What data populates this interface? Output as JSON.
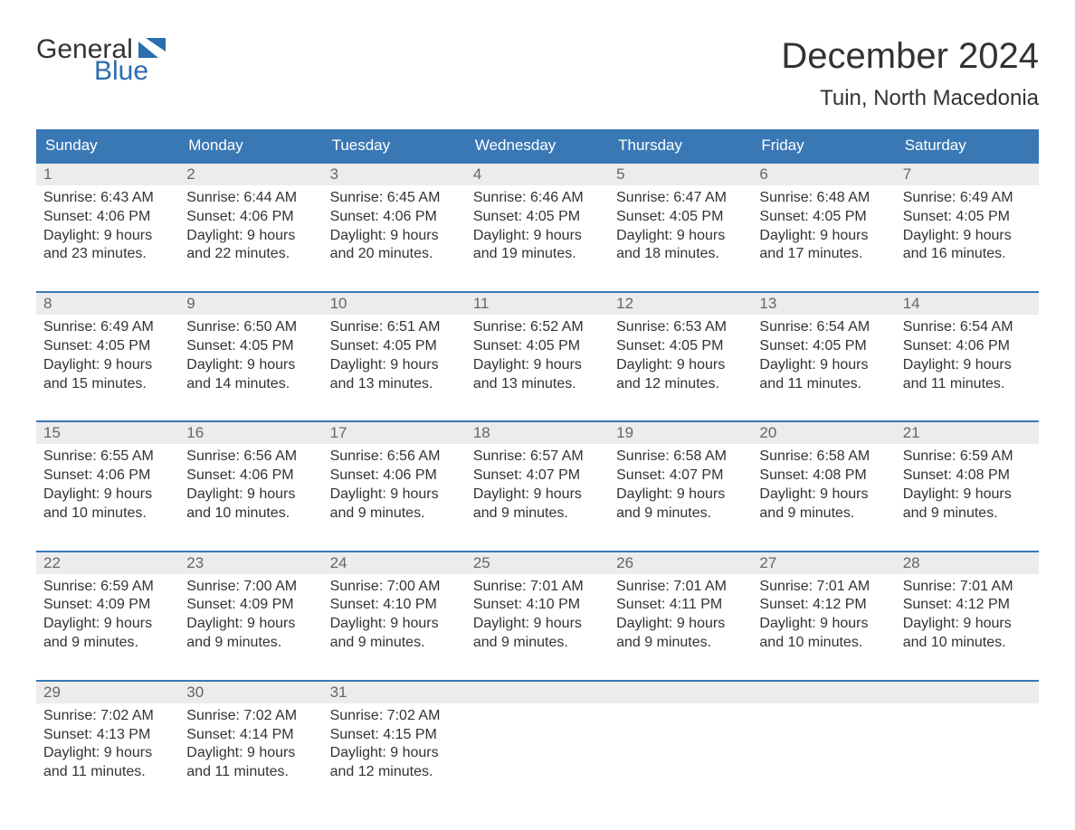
{
  "brand": {
    "word1": "General",
    "word2": "Blue",
    "text_color": "#333333",
    "accent_color": "#2a6db0"
  },
  "header": {
    "month_title": "December 2024",
    "location": "Tuin, North Macedonia"
  },
  "colors": {
    "header_row_bg": "#3a78b5",
    "header_row_text": "#ffffff",
    "daynum_bg": "#ececec",
    "daynum_border": "#3a78b5",
    "daynum_text": "#666666",
    "body_text": "#333333",
    "page_bg": "#ffffff"
  },
  "typography": {
    "month_title_fontsize": 40,
    "location_fontsize": 24,
    "day_header_fontsize": 17,
    "daynum_fontsize": 17,
    "body_fontsize": 16,
    "logo_fontsize": 30
  },
  "day_headers": [
    "Sunday",
    "Monday",
    "Tuesday",
    "Wednesday",
    "Thursday",
    "Friday",
    "Saturday"
  ],
  "weeks": [
    [
      {
        "num": "1",
        "sunrise": "Sunrise: 6:43 AM",
        "sunset": "Sunset: 4:06 PM",
        "daylight1": "Daylight: 9 hours",
        "daylight2": "and 23 minutes."
      },
      {
        "num": "2",
        "sunrise": "Sunrise: 6:44 AM",
        "sunset": "Sunset: 4:06 PM",
        "daylight1": "Daylight: 9 hours",
        "daylight2": "and 22 minutes."
      },
      {
        "num": "3",
        "sunrise": "Sunrise: 6:45 AM",
        "sunset": "Sunset: 4:06 PM",
        "daylight1": "Daylight: 9 hours",
        "daylight2": "and 20 minutes."
      },
      {
        "num": "4",
        "sunrise": "Sunrise: 6:46 AM",
        "sunset": "Sunset: 4:05 PM",
        "daylight1": "Daylight: 9 hours",
        "daylight2": "and 19 minutes."
      },
      {
        "num": "5",
        "sunrise": "Sunrise: 6:47 AM",
        "sunset": "Sunset: 4:05 PM",
        "daylight1": "Daylight: 9 hours",
        "daylight2": "and 18 minutes."
      },
      {
        "num": "6",
        "sunrise": "Sunrise: 6:48 AM",
        "sunset": "Sunset: 4:05 PM",
        "daylight1": "Daylight: 9 hours",
        "daylight2": "and 17 minutes."
      },
      {
        "num": "7",
        "sunrise": "Sunrise: 6:49 AM",
        "sunset": "Sunset: 4:05 PM",
        "daylight1": "Daylight: 9 hours",
        "daylight2": "and 16 minutes."
      }
    ],
    [
      {
        "num": "8",
        "sunrise": "Sunrise: 6:49 AM",
        "sunset": "Sunset: 4:05 PM",
        "daylight1": "Daylight: 9 hours",
        "daylight2": "and 15 minutes."
      },
      {
        "num": "9",
        "sunrise": "Sunrise: 6:50 AM",
        "sunset": "Sunset: 4:05 PM",
        "daylight1": "Daylight: 9 hours",
        "daylight2": "and 14 minutes."
      },
      {
        "num": "10",
        "sunrise": "Sunrise: 6:51 AM",
        "sunset": "Sunset: 4:05 PM",
        "daylight1": "Daylight: 9 hours",
        "daylight2": "and 13 minutes."
      },
      {
        "num": "11",
        "sunrise": "Sunrise: 6:52 AM",
        "sunset": "Sunset: 4:05 PM",
        "daylight1": "Daylight: 9 hours",
        "daylight2": "and 13 minutes."
      },
      {
        "num": "12",
        "sunrise": "Sunrise: 6:53 AM",
        "sunset": "Sunset: 4:05 PM",
        "daylight1": "Daylight: 9 hours",
        "daylight2": "and 12 minutes."
      },
      {
        "num": "13",
        "sunrise": "Sunrise: 6:54 AM",
        "sunset": "Sunset: 4:05 PM",
        "daylight1": "Daylight: 9 hours",
        "daylight2": "and 11 minutes."
      },
      {
        "num": "14",
        "sunrise": "Sunrise: 6:54 AM",
        "sunset": "Sunset: 4:06 PM",
        "daylight1": "Daylight: 9 hours",
        "daylight2": "and 11 minutes."
      }
    ],
    [
      {
        "num": "15",
        "sunrise": "Sunrise: 6:55 AM",
        "sunset": "Sunset: 4:06 PM",
        "daylight1": "Daylight: 9 hours",
        "daylight2": "and 10 minutes."
      },
      {
        "num": "16",
        "sunrise": "Sunrise: 6:56 AM",
        "sunset": "Sunset: 4:06 PM",
        "daylight1": "Daylight: 9 hours",
        "daylight2": "and 10 minutes."
      },
      {
        "num": "17",
        "sunrise": "Sunrise: 6:56 AM",
        "sunset": "Sunset: 4:06 PM",
        "daylight1": "Daylight: 9 hours",
        "daylight2": "and 9 minutes."
      },
      {
        "num": "18",
        "sunrise": "Sunrise: 6:57 AM",
        "sunset": "Sunset: 4:07 PM",
        "daylight1": "Daylight: 9 hours",
        "daylight2": "and 9 minutes."
      },
      {
        "num": "19",
        "sunrise": "Sunrise: 6:58 AM",
        "sunset": "Sunset: 4:07 PM",
        "daylight1": "Daylight: 9 hours",
        "daylight2": "and 9 minutes."
      },
      {
        "num": "20",
        "sunrise": "Sunrise: 6:58 AM",
        "sunset": "Sunset: 4:08 PM",
        "daylight1": "Daylight: 9 hours",
        "daylight2": "and 9 minutes."
      },
      {
        "num": "21",
        "sunrise": "Sunrise: 6:59 AM",
        "sunset": "Sunset: 4:08 PM",
        "daylight1": "Daylight: 9 hours",
        "daylight2": "and 9 minutes."
      }
    ],
    [
      {
        "num": "22",
        "sunrise": "Sunrise: 6:59 AM",
        "sunset": "Sunset: 4:09 PM",
        "daylight1": "Daylight: 9 hours",
        "daylight2": "and 9 minutes."
      },
      {
        "num": "23",
        "sunrise": "Sunrise: 7:00 AM",
        "sunset": "Sunset: 4:09 PM",
        "daylight1": "Daylight: 9 hours",
        "daylight2": "and 9 minutes."
      },
      {
        "num": "24",
        "sunrise": "Sunrise: 7:00 AM",
        "sunset": "Sunset: 4:10 PM",
        "daylight1": "Daylight: 9 hours",
        "daylight2": "and 9 minutes."
      },
      {
        "num": "25",
        "sunrise": "Sunrise: 7:01 AM",
        "sunset": "Sunset: 4:10 PM",
        "daylight1": "Daylight: 9 hours",
        "daylight2": "and 9 minutes."
      },
      {
        "num": "26",
        "sunrise": "Sunrise: 7:01 AM",
        "sunset": "Sunset: 4:11 PM",
        "daylight1": "Daylight: 9 hours",
        "daylight2": "and 9 minutes."
      },
      {
        "num": "27",
        "sunrise": "Sunrise: 7:01 AM",
        "sunset": "Sunset: 4:12 PM",
        "daylight1": "Daylight: 9 hours",
        "daylight2": "and 10 minutes."
      },
      {
        "num": "28",
        "sunrise": "Sunrise: 7:01 AM",
        "sunset": "Sunset: 4:12 PM",
        "daylight1": "Daylight: 9 hours",
        "daylight2": "and 10 minutes."
      }
    ],
    [
      {
        "num": "29",
        "sunrise": "Sunrise: 7:02 AM",
        "sunset": "Sunset: 4:13 PM",
        "daylight1": "Daylight: 9 hours",
        "daylight2": "and 11 minutes."
      },
      {
        "num": "30",
        "sunrise": "Sunrise: 7:02 AM",
        "sunset": "Sunset: 4:14 PM",
        "daylight1": "Daylight: 9 hours",
        "daylight2": "and 11 minutes."
      },
      {
        "num": "31",
        "sunrise": "Sunrise: 7:02 AM",
        "sunset": "Sunset: 4:15 PM",
        "daylight1": "Daylight: 9 hours",
        "daylight2": "and 12 minutes."
      },
      null,
      null,
      null,
      null
    ]
  ]
}
